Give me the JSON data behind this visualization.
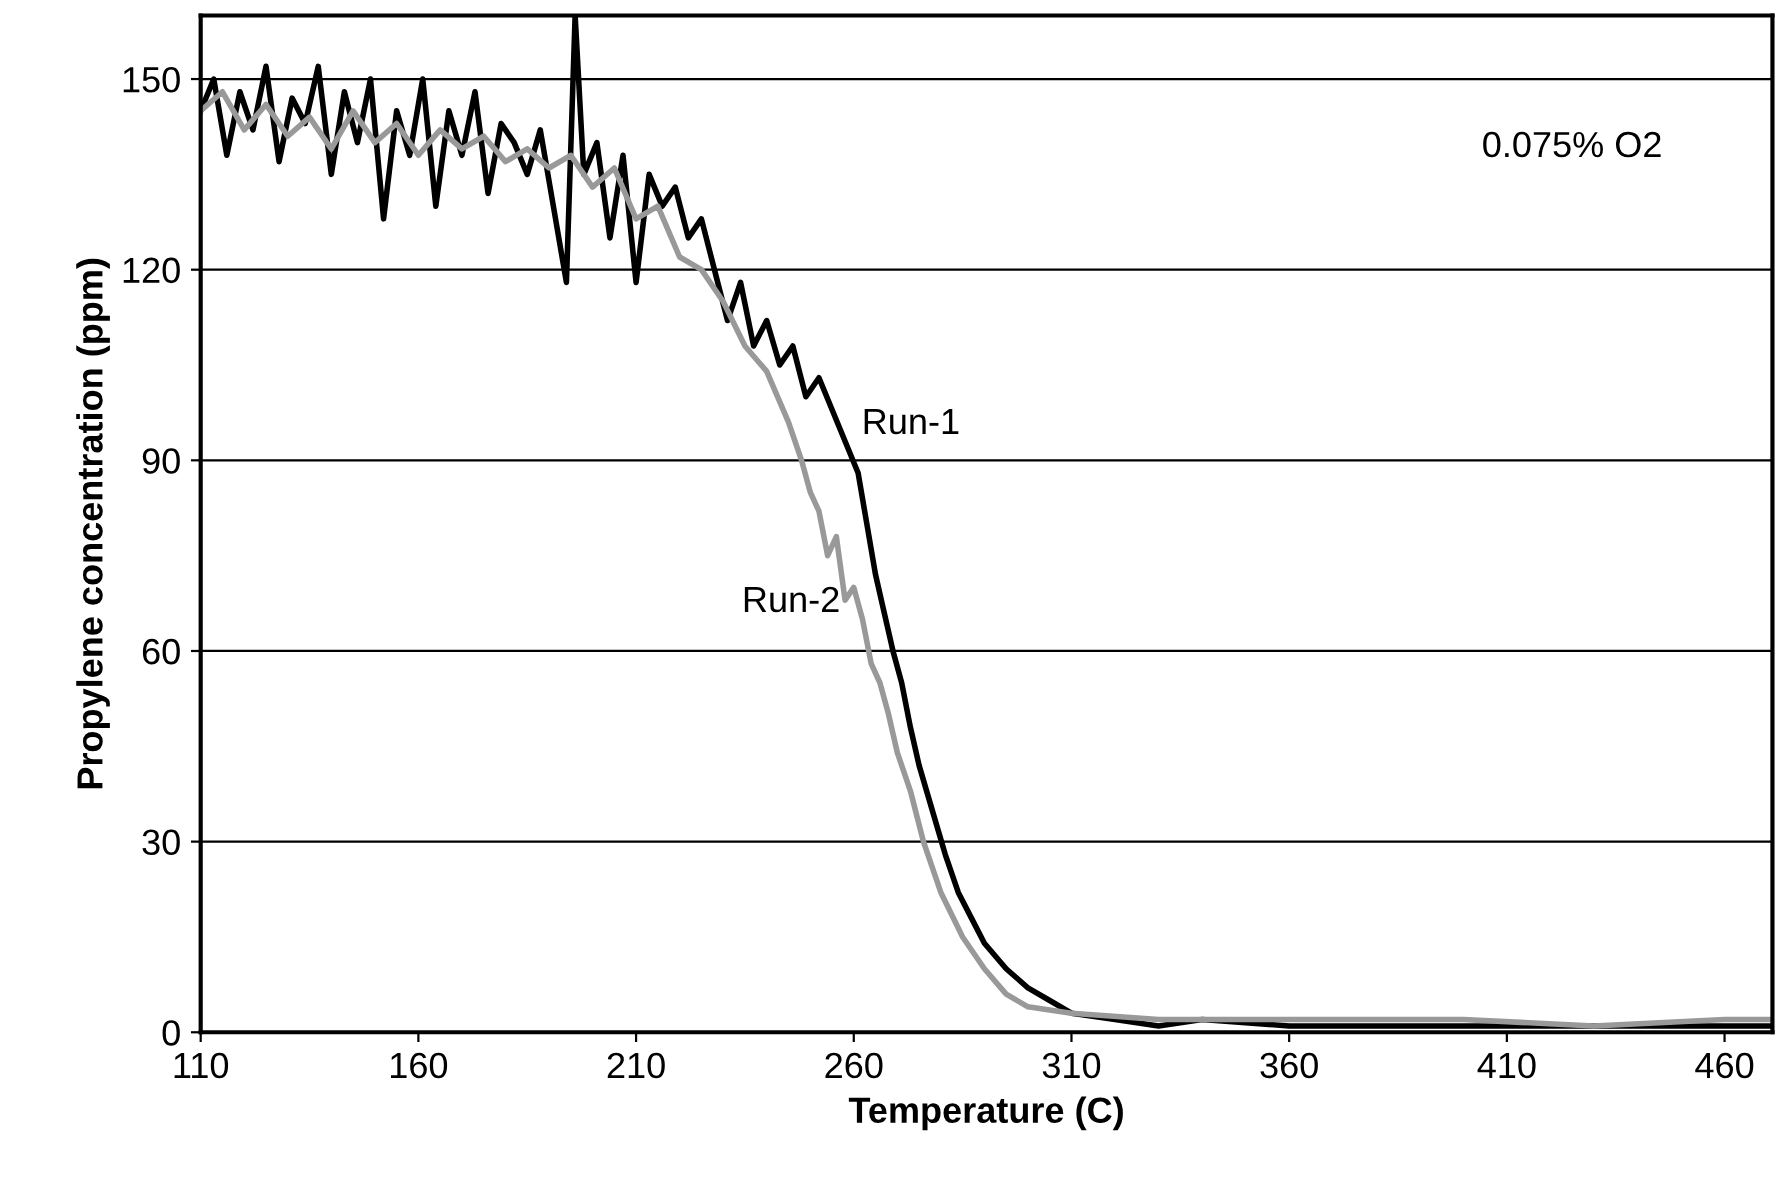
{
  "chart_data": {
    "type": "line",
    "xlabel": "Temperature (C)",
    "ylabel": "Propylene concentration (ppm)",
    "xlim": [
      110,
      471
    ],
    "ylim": [
      0,
      160
    ],
    "xticks": [
      110,
      160,
      210,
      260,
      310,
      360,
      410,
      460
    ],
    "yticks": [
      0,
      30,
      60,
      90,
      120,
      150
    ],
    "grid": "y",
    "legend": false,
    "annotations": [
      "0.075% O2"
    ],
    "series": [
      {
        "name": "Run-1",
        "color": "#000000",
        "x": [
          110,
          113,
          116,
          119,
          122,
          125,
          128,
          131,
          134,
          137,
          140,
          143,
          146,
          149,
          152,
          155,
          158,
          161,
          164,
          167,
          170,
          173,
          176,
          179,
          182,
          185,
          188,
          191,
          194,
          196,
          198,
          201,
          204,
          207,
          210,
          213,
          216,
          219,
          222,
          225,
          228,
          231,
          234,
          237,
          240,
          243,
          246,
          249,
          252,
          255,
          258,
          261,
          263,
          265,
          267,
          269,
          271,
          273,
          275,
          278,
          281,
          284,
          287,
          290,
          295,
          300,
          305,
          310,
          320,
          330,
          340,
          360,
          380,
          400,
          420,
          440,
          460,
          471
        ],
        "values": [
          145,
          150,
          138,
          148,
          142,
          152,
          137,
          147,
          143,
          152,
          135,
          148,
          140,
          150,
          128,
          145,
          138,
          150,
          130,
          145,
          138,
          148,
          132,
          143,
          140,
          135,
          142,
          130,
          118,
          160,
          135,
          140,
          125,
          138,
          118,
          135,
          130,
          133,
          125,
          128,
          120,
          112,
          118,
          108,
          112,
          105,
          108,
          100,
          103,
          98,
          93,
          88,
          80,
          72,
          66,
          60,
          55,
          48,
          42,
          35,
          28,
          22,
          18,
          14,
          10,
          7,
          5,
          3,
          2,
          1,
          2,
          1,
          1,
          1,
          1,
          1,
          1,
          1
        ]
      },
      {
        "name": "Run-2",
        "color": "#999999",
        "x": [
          110,
          115,
          120,
          125,
          130,
          135,
          140,
          145,
          150,
          155,
          160,
          165,
          170,
          175,
          180,
          185,
          190,
          195,
          200,
          205,
          210,
          215,
          220,
          225,
          230,
          235,
          240,
          245,
          248,
          250,
          252,
          254,
          256,
          258,
          260,
          262,
          264,
          266,
          268,
          270,
          273,
          276,
          280,
          285,
          290,
          295,
          300,
          310,
          330,
          350,
          380,
          400,
          430,
          460,
          471
        ],
        "values": [
          145,
          148,
          142,
          146,
          141,
          144,
          139,
          145,
          140,
          143,
          138,
          142,
          139,
          141,
          137,
          139,
          136,
          138,
          133,
          136,
          128,
          130,
          122,
          120,
          115,
          108,
          104,
          96,
          90,
          85,
          82,
          75,
          78,
          68,
          70,
          65,
          58,
          55,
          50,
          44,
          38,
          30,
          22,
          15,
          10,
          6,
          4,
          3,
          2,
          2,
          2,
          2,
          1,
          2,
          2
        ]
      }
    ]
  }
}
